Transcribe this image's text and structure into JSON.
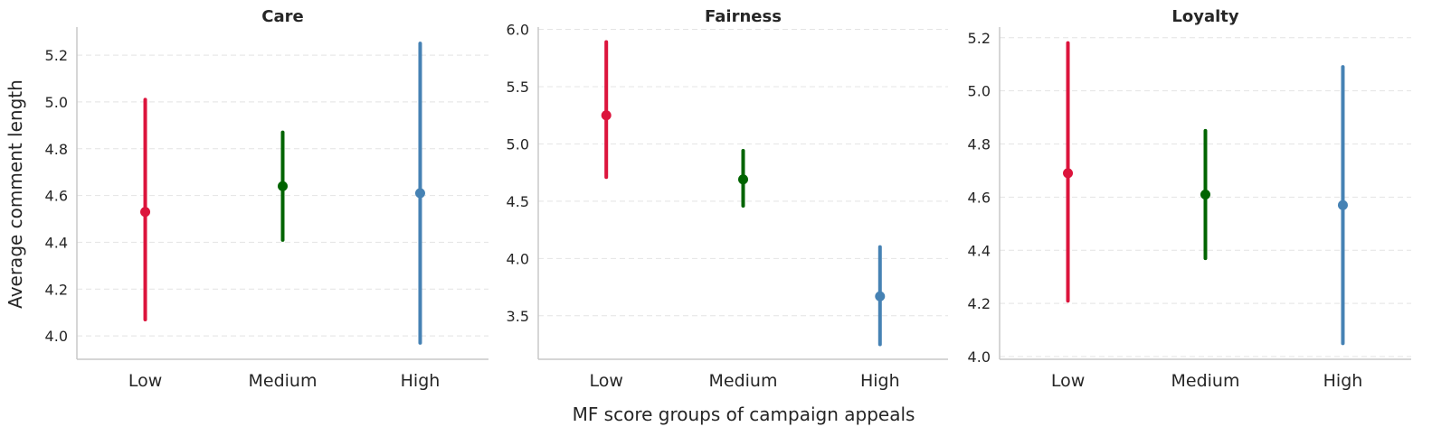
{
  "chart_data": {
    "type": "pointplot",
    "xlabel": "MF score groups of campaign appeals",
    "ylabel": "Average comment length",
    "categories": [
      "Low",
      "Medium",
      "High"
    ],
    "colors": [
      "#dc143c",
      "#006400",
      "#4682b4"
    ],
    "grid": "y-dashed",
    "panels": [
      {
        "title": "Care",
        "ylim": [
          3.9,
          5.32
        ],
        "yticks": [
          "4.0",
          "4.2",
          "4.4",
          "4.6",
          "4.8",
          "5.0",
          "5.2"
        ],
        "points": [
          {
            "category": "Low",
            "mean": 4.53,
            "lower": 4.07,
            "upper": 5.01
          },
          {
            "category": "Medium",
            "mean": 4.64,
            "lower": 4.41,
            "upper": 4.87
          },
          {
            "category": "High",
            "mean": 4.61,
            "lower": 3.97,
            "upper": 5.25
          }
        ]
      },
      {
        "title": "Fairness",
        "ylim": [
          3.12,
          6.02
        ],
        "yticks": [
          "3.5",
          "4.0",
          "4.5",
          "5.0",
          "5.5",
          "6.0"
        ],
        "points": [
          {
            "category": "Low",
            "mean": 5.25,
            "lower": 4.71,
            "upper": 5.89
          },
          {
            "category": "Medium",
            "mean": 4.69,
            "lower": 4.46,
            "upper": 4.94
          },
          {
            "category": "High",
            "mean": 3.67,
            "lower": 3.25,
            "upper": 4.1
          }
        ]
      },
      {
        "title": "Loyalty",
        "ylim": [
          3.99,
          5.24
        ],
        "yticks": [
          "4.0",
          "4.2",
          "4.4",
          "4.6",
          "4.8",
          "5.0",
          "5.2"
        ],
        "points": [
          {
            "category": "Low",
            "mean": 4.69,
            "lower": 4.21,
            "upper": 5.18
          },
          {
            "category": "Medium",
            "mean": 4.61,
            "lower": 4.37,
            "upper": 4.85
          },
          {
            "category": "High",
            "mean": 4.57,
            "lower": 4.05,
            "upper": 5.09
          }
        ]
      }
    ]
  }
}
